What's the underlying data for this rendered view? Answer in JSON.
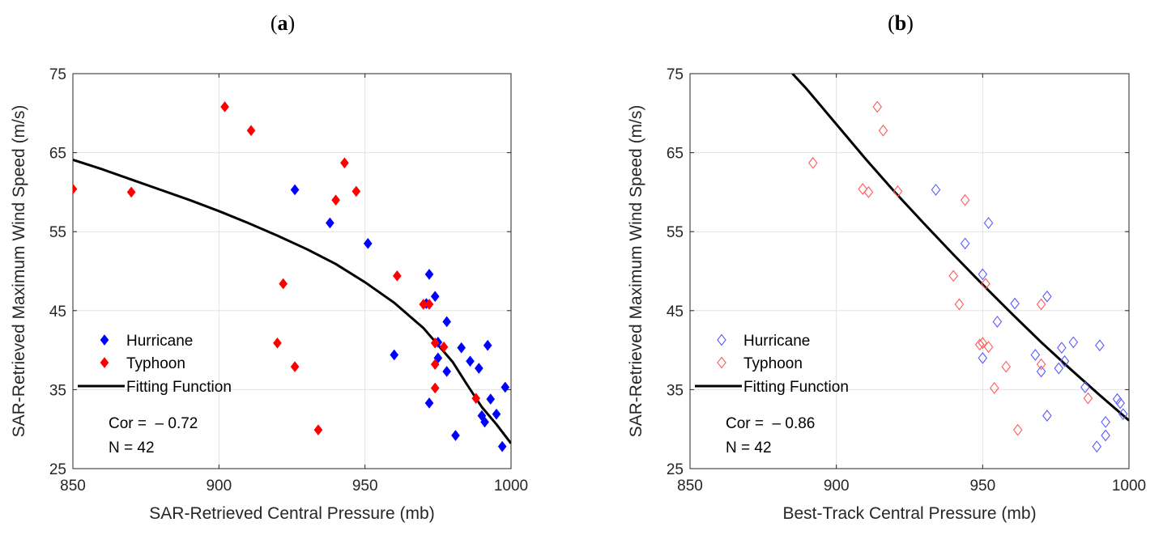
{
  "chart_data": [
    {
      "type": "scatter",
      "panel_label": "a",
      "xlabel": "SAR-Retrieved Central Pressure (mb)",
      "ylabel": "SAR-Retrieved Maximum Wind Speed (m/s)",
      "xlim": [
        850,
        1000
      ],
      "ylim": [
        25,
        75
      ],
      "xticks": [
        850,
        900,
        950,
        1000
      ],
      "yticks": [
        25,
        35,
        45,
        55,
        65,
        75
      ],
      "grid": true,
      "marker": "filled-diamond",
      "series": [
        {
          "name": "Hurricane",
          "color": "#0000ff",
          "points": [
            [
              926,
              60.3
            ],
            [
              938,
              56.1
            ],
            [
              951,
              53.5
            ],
            [
              972,
              49.6
            ],
            [
              971,
              45.9
            ],
            [
              974,
              46.8
            ],
            [
              978,
              43.6
            ],
            [
              975,
              41.0
            ],
            [
              975,
              39.0
            ],
            [
              960,
              39.4
            ],
            [
              972,
              33.3
            ],
            [
              983,
              40.3
            ],
            [
              986,
              38.6
            ],
            [
              989,
              37.7
            ],
            [
              992,
              40.6
            ],
            [
              998,
              35.3
            ],
            [
              993,
              33.8
            ],
            [
              995,
              31.9
            ],
            [
              990,
              31.7
            ],
            [
              991,
              30.9
            ],
            [
              981,
              29.2
            ],
            [
              997,
              27.8
            ],
            [
              978,
              37.3
            ]
          ]
        },
        {
          "name": "Typhoon",
          "color": "#ff0000",
          "points": [
            [
              850,
              60.4
            ],
            [
              870,
              60.0
            ],
            [
              902,
              70.8
            ],
            [
              911,
              67.8
            ],
            [
              943,
              63.7
            ],
            [
              947,
              60.1
            ],
            [
              940,
              59.0
            ],
            [
              961,
              49.4
            ],
            [
              922,
              48.4
            ],
            [
              970,
              45.8
            ],
            [
              972,
              45.8
            ],
            [
              920,
              40.9
            ],
            [
              926,
              37.9
            ],
            [
              974,
              40.9
            ],
            [
              977,
              40.4
            ],
            [
              974,
              38.2
            ],
            [
              974,
              35.2
            ],
            [
              988,
              33.9
            ],
            [
              934,
              29.9
            ]
          ]
        }
      ],
      "fit": {
        "name": "Fitting Function",
        "color": "#000000",
        "x": [
          850,
          860,
          870,
          880,
          890,
          900,
          910,
          920,
          930,
          940,
          950,
          960,
          970,
          980,
          985,
          990,
          995,
          1000
        ],
        "y": [
          64.1,
          62.9,
          61.6,
          60.3,
          59.0,
          57.6,
          56.1,
          54.5,
          52.8,
          50.9,
          48.6,
          46.0,
          42.8,
          38.5,
          35.6,
          32.8,
          30.6,
          28.2
        ]
      },
      "stats": {
        "cor": "Cor =  – 0.72",
        "n": "N = 42"
      },
      "legend_position": "lower-left"
    },
    {
      "type": "scatter",
      "panel_label": "b",
      "xlabel": "Best-Track Central Pressure (mb)",
      "ylabel": "SAR-Retrieved Maximum Wind Speed (m/s)",
      "xlim": [
        850,
        1000
      ],
      "ylim": [
        25,
        75
      ],
      "xticks": [
        850,
        900,
        950,
        1000
      ],
      "yticks": [
        25,
        35,
        45,
        55,
        65,
        75
      ],
      "grid": true,
      "marker": "open-diamond",
      "series": [
        {
          "name": "Hurricane",
          "color": "#5a5aff",
          "points": [
            [
              934,
              60.3
            ],
            [
              952,
              56.1
            ],
            [
              944,
              53.5
            ],
            [
              950,
              49.6
            ],
            [
              972,
              46.8
            ],
            [
              961,
              45.9
            ],
            [
              955,
              43.6
            ],
            [
              981,
              41.0
            ],
            [
              990,
              40.6
            ],
            [
              977,
              40.3
            ],
            [
              968,
              39.4
            ],
            [
              950,
              39.0
            ],
            [
              978,
              38.6
            ],
            [
              976,
              37.7
            ],
            [
              970,
              37.3
            ],
            [
              985,
              35.3
            ],
            [
              996,
              33.8
            ],
            [
              997,
              33.3
            ],
            [
              998,
              31.9
            ],
            [
              972,
              31.7
            ],
            [
              992,
              30.9
            ],
            [
              992,
              29.2
            ],
            [
              989,
              27.8
            ]
          ]
        },
        {
          "name": "Typhoon",
          "color": "#ff5a5a",
          "points": [
            [
              914,
              70.8
            ],
            [
              916,
              67.8
            ],
            [
              892,
              63.7
            ],
            [
              909,
              60.4
            ],
            [
              911,
              60.0
            ],
            [
              921,
              60.1
            ],
            [
              944,
              59.0
            ],
            [
              940,
              49.4
            ],
            [
              951,
              48.4
            ],
            [
              942,
              45.8
            ],
            [
              970,
              45.8
            ],
            [
              949,
              40.7
            ],
            [
              950,
              40.9
            ],
            [
              952,
              40.4
            ],
            [
              958,
              37.9
            ],
            [
              970,
              38.2
            ],
            [
              954,
              35.2
            ],
            [
              986,
              33.9
            ],
            [
              962,
              29.9
            ]
          ]
        }
      ],
      "fit": {
        "name": "Fitting Function",
        "color": "#000000",
        "x": [
          885,
          890,
          900,
          910,
          920,
          930,
          940,
          950,
          960,
          970,
          980,
          990,
          1000
        ],
        "y": [
          75.0,
          73.0,
          68.6,
          64.2,
          60.0,
          56.0,
          52.1,
          48.3,
          44.6,
          41.0,
          37.6,
          34.3,
          31.1
        ]
      },
      "stats": {
        "cor": "Cor =  – 0.86",
        "n": "N = 42"
      },
      "legend_position": "lower-left"
    }
  ]
}
